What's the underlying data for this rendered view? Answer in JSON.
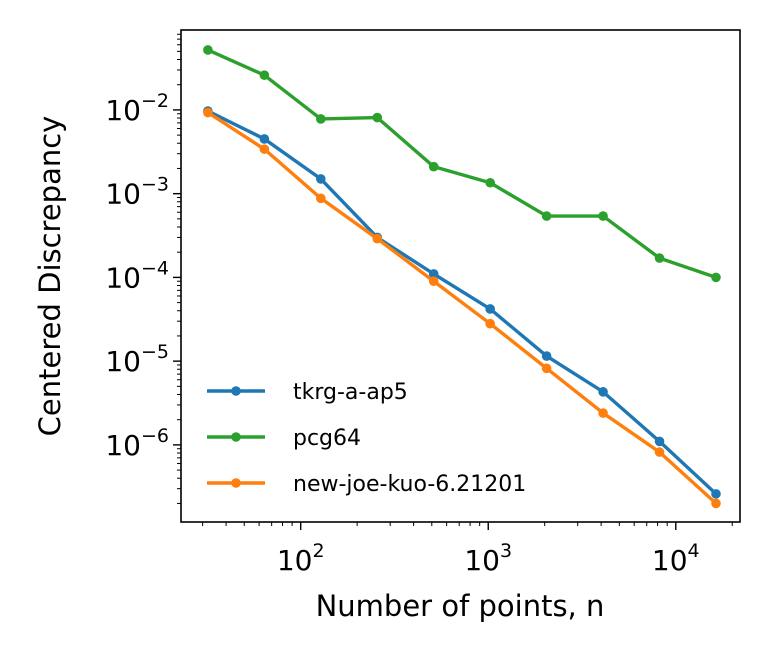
{
  "chart_data": {
    "type": "line",
    "xscale": "log",
    "yscale": "log",
    "xlabel": "Number of points, n",
    "ylabel": "Centered Discrepancy",
    "xlim": [
      23,
      22000
    ],
    "ylim": [
      1.2e-07,
      0.09
    ],
    "x": [
      32,
      64,
      128,
      256,
      512,
      1024,
      2048,
      4096,
      8192,
      16384
    ],
    "x_ticks": [
      {
        "value": 100,
        "base": "10",
        "exp": "2"
      },
      {
        "value": 1000,
        "base": "10",
        "exp": "3"
      },
      {
        "value": 10000,
        "base": "10",
        "exp": "4"
      }
    ],
    "y_ticks": [
      {
        "value": 1e-06,
        "base": "10",
        "exp": "−6"
      },
      {
        "value": 1e-05,
        "base": "10",
        "exp": "−5"
      },
      {
        "value": 0.0001,
        "base": "10",
        "exp": "−4"
      },
      {
        "value": 0.001,
        "base": "10",
        "exp": "−3"
      },
      {
        "value": 0.01,
        "base": "10",
        "exp": "−2"
      }
    ],
    "legend_position": "bottom-left",
    "series": [
      {
        "name": "tkrg-a-ap5",
        "color": "#1f77b4",
        "values": [
          0.0097,
          0.0045,
          0.0015,
          0.0003,
          0.00011,
          4.2e-05,
          1.15e-05,
          4.3e-06,
          1.1e-06,
          2.6e-07
        ]
      },
      {
        "name": "pcg64",
        "color": "#2ca02c",
        "values": [
          0.052,
          0.026,
          0.0078,
          0.0081,
          0.0021,
          0.00135,
          0.00054,
          0.00054,
          0.00017,
          0.0001
        ]
      },
      {
        "name": "new-joe-kuo-6.21201",
        "color": "#ff7f0e",
        "values": [
          0.0093,
          0.0034,
          0.00088,
          0.00029,
          9e-05,
          2.8e-05,
          8.2e-06,
          2.4e-06,
          8.2e-07,
          2e-07
        ]
      }
    ]
  }
}
